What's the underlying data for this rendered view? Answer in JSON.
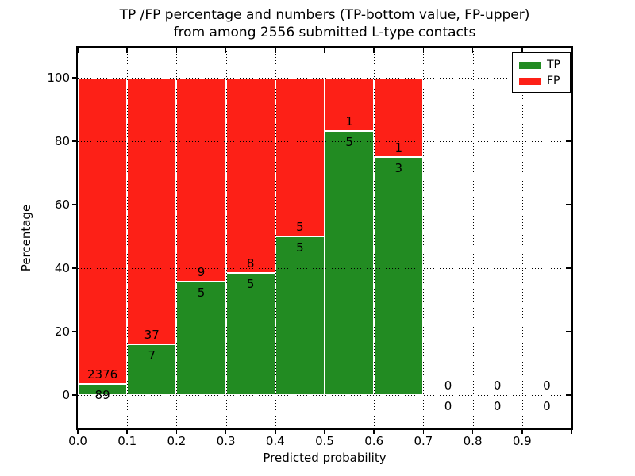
{
  "title_line1": "TP /FP percentage and numbers (TP-bottom value, FP-upper)",
  "title_line2": "from among 2556 submitted L-type contacts",
  "chart_data": {
    "type": "bar",
    "stacked": true,
    "title_line1": "TP /FP percentage and numbers (TP-bottom value, FP-upper)",
    "title_line2": "from among 2556 submitted L-type contacts",
    "xlabel": "Predicted probability",
    "ylabel": "Percentage",
    "xlim": [
      0.0,
      1.0
    ],
    "ylim": [
      -10,
      110
    ],
    "x_ticks": [
      "0.0",
      "0.1",
      "0.2",
      "0.3",
      "0.4",
      "0.5",
      "0.6",
      "0.7",
      "0.8",
      "0.9"
    ],
    "y_ticks": [
      "0",
      "20",
      "40",
      "60",
      "80",
      "100"
    ],
    "grid": "dotted",
    "total_submitted": 2556,
    "colors": {
      "tp": "#228b22",
      "fp": "#fd2017"
    },
    "legend": {
      "position": "upper-right",
      "entries": [
        {
          "label": "TP",
          "color": "#228b22"
        },
        {
          "label": "FP",
          "color": "#fd2017"
        }
      ]
    },
    "bins": [
      {
        "x0": 0.0,
        "x1": 0.1,
        "tp": 89,
        "fp": 2376,
        "tp_pct": 3.6
      },
      {
        "x0": 0.1,
        "x1": 0.2,
        "tp": 7,
        "fp": 37,
        "tp_pct": 15.9
      },
      {
        "x0": 0.2,
        "x1": 0.3,
        "tp": 5,
        "fp": 9,
        "tp_pct": 35.7
      },
      {
        "x0": 0.3,
        "x1": 0.4,
        "tp": 5,
        "fp": 8,
        "tp_pct": 38.5
      },
      {
        "x0": 0.4,
        "x1": 0.5,
        "tp": 5,
        "fp": 5,
        "tp_pct": 50.0
      },
      {
        "x0": 0.5,
        "x1": 0.6,
        "tp": 5,
        "fp": 1,
        "tp_pct": 83.3
      },
      {
        "x0": 0.6,
        "x1": 0.7,
        "tp": 3,
        "fp": 1,
        "tp_pct": 75.0
      },
      {
        "x0": 0.7,
        "x1": 0.8,
        "tp": 0,
        "fp": 0,
        "tp_pct": 0
      },
      {
        "x0": 0.8,
        "x1": 0.9,
        "tp": 0,
        "fp": 0,
        "tp_pct": 0
      },
      {
        "x0": 0.9,
        "x1": 1.0,
        "tp": 0,
        "fp": 0,
        "tp_pct": 0
      }
    ]
  }
}
